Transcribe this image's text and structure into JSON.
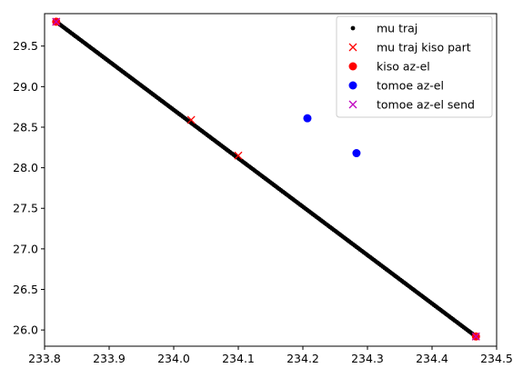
{
  "chart_data": {
    "type": "scatter",
    "xlim": [
      233.8,
      234.5
    ],
    "ylim": [
      25.8,
      29.9
    ],
    "x_ticks": [
      233.8,
      233.9,
      234.0,
      234.1,
      234.2,
      234.3,
      234.4,
      234.5
    ],
    "x_tick_labels": [
      "233.8",
      "233.9",
      "234.0",
      "234.1",
      "234.2",
      "234.3",
      "234.4",
      "234.5"
    ],
    "y_ticks": [
      26.0,
      26.5,
      27.0,
      27.5,
      28.0,
      28.5,
      29.0,
      29.5
    ],
    "y_tick_labels": [
      "26.0",
      "26.5",
      "27.0",
      "27.5",
      "28.0",
      "28.5",
      "29.0",
      "29.5"
    ],
    "grid": false,
    "legend_position": "top-right",
    "series": [
      {
        "name": "mu traj",
        "marker": "dot",
        "color": "#000000",
        "line_from": [
          233.818,
          29.8
        ],
        "line_to": [
          234.468,
          25.92
        ],
        "point_count": 240
      },
      {
        "name": "mu traj kiso part",
        "marker": "x",
        "color": "#ff0000",
        "points": [
          [
            233.818,
            29.8
          ],
          [
            234.027,
            28.59
          ],
          [
            234.1,
            28.15
          ],
          [
            234.468,
            25.92
          ]
        ]
      },
      {
        "name": "kiso az-el",
        "marker": "circle",
        "color": "#ff0000",
        "points": [
          [
            233.818,
            29.8
          ],
          [
            234.468,
            25.92
          ]
        ]
      },
      {
        "name": "tomoe az-el",
        "marker": "circle",
        "color": "#0000ff",
        "points": [
          [
            234.207,
            28.61
          ],
          [
            234.283,
            28.18
          ]
        ]
      },
      {
        "name": "tomoe az-el send",
        "marker": "x",
        "color": "#bf00bf",
        "points": [
          [
            233.818,
            29.8
          ],
          [
            234.468,
            25.92
          ]
        ]
      }
    ]
  }
}
